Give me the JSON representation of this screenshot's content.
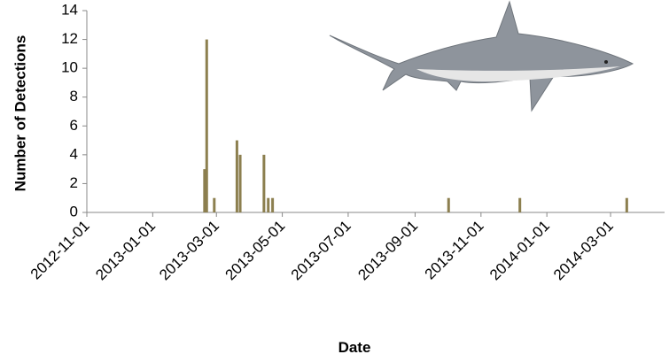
{
  "chart_data": {
    "type": "bar",
    "x_label": "Date",
    "y_label": "Number of Detections",
    "x": [
      "2013-02-18",
      "2013-02-20",
      "2013-02-27",
      "2013-03-20",
      "2013-03-23",
      "2013-04-14",
      "2013-04-18",
      "2013-04-22",
      "2013-10-02",
      "2013-12-07",
      "2014-03-16"
    ],
    "values": [
      3,
      12,
      1,
      5,
      4,
      4,
      1,
      1,
      1,
      1,
      1
    ],
    "color": "#8c7f4f",
    "xlim": [
      "2012-11-01",
      "2014-04-20"
    ],
    "xticks": [
      "2012-11-01",
      "2013-01-01",
      "2013-03-01",
      "2013-05-01",
      "2013-07-01",
      "2013-09-01",
      "2013-11-01",
      "2014-01-01",
      "2014-03-01"
    ],
    "ylim": [
      0,
      14
    ],
    "yticks": [
      0,
      2,
      4,
      6,
      8,
      10,
      12,
      14
    ]
  }
}
